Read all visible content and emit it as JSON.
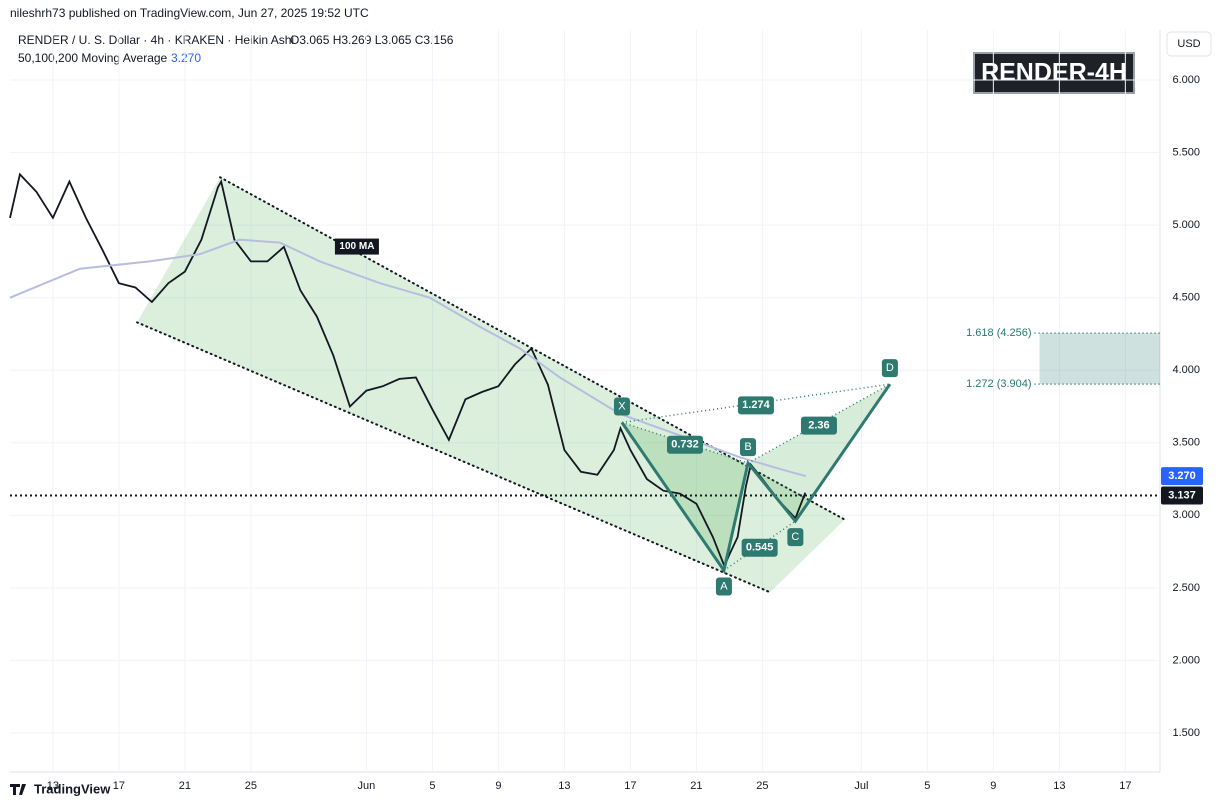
{
  "header": {
    "byline": "nileshrh73 published on TradingView.com, Jun 27, 2025 19:52 UTC",
    "symbol": "RENDER / U. S. Dollar · 4h · KRAKEN · Heikin Ashi",
    "ohlc": "O3.065 H3.269 L3.065 C3.156",
    "indicator": "50,100,200 Moving Average",
    "badge": "RENDER-4H",
    "currency": "USD",
    "footer": "TradingView"
  },
  "chart_data": {
    "type": "line",
    "ylim": [
      1.231,
      6.345
    ],
    "xlim": [
      10.4,
      80.1
    ],
    "grid": true,
    "yticks": [
      {
        "value": 6,
        "label": "6.000"
      },
      {
        "value": 5.5,
        "label": "5.500"
      },
      {
        "value": 5,
        "label": "5.000"
      },
      {
        "value": 4.5,
        "label": "4.500"
      },
      {
        "value": 4,
        "label": "4.000"
      },
      {
        "value": 3.5,
        "label": "3.500"
      },
      {
        "value": 3,
        "label": "3.000"
      },
      {
        "value": 2.5,
        "label": "2.500"
      },
      {
        "value": 2,
        "label": "2.000"
      },
      {
        "value": 1.5,
        "label": "1.500"
      }
    ],
    "xticks": [
      {
        "value": 13,
        "label": "13"
      },
      {
        "value": 17,
        "label": "17"
      },
      {
        "value": 21,
        "label": "21"
      },
      {
        "value": 25,
        "label": "25"
      },
      {
        "value": 32,
        "label": "Jun"
      },
      {
        "value": 36,
        "label": "5"
      },
      {
        "value": 40,
        "label": "9"
      },
      {
        "value": 44,
        "label": "13"
      },
      {
        "value": 48,
        "label": "17"
      },
      {
        "value": 52,
        "label": "21"
      },
      {
        "value": 56,
        "label": "25"
      },
      {
        "value": 62,
        "label": "Jul"
      },
      {
        "value": 66,
        "label": "5"
      },
      {
        "value": 70,
        "label": "9"
      },
      {
        "value": 74,
        "label": "13"
      },
      {
        "value": 78,
        "label": "17"
      }
    ],
    "series": [
      {
        "name": "RENDER",
        "color": "#131722",
        "x": [
          10.4,
          11,
          12,
          13,
          14,
          15,
          16,
          17,
          18,
          19,
          20,
          21,
          22,
          23,
          23.2,
          24,
          25,
          26,
          27,
          28,
          29,
          30,
          31,
          32,
          33,
          34,
          35,
          36,
          37,
          38,
          39,
          40,
          41,
          42,
          43,
          44,
          45,
          46,
          47,
          47.4,
          48,
          49,
          50,
          51,
          52,
          53,
          53.7,
          54,
          54.5,
          55,
          55.3,
          56,
          57,
          58,
          58.6
        ],
        "values": [
          5.05,
          5.35,
          5.23,
          5.05,
          5.3,
          5.05,
          4.83,
          4.6,
          4.57,
          4.47,
          4.6,
          4.68,
          4.9,
          5.26,
          5.3,
          4.9,
          4.75,
          4.75,
          4.85,
          4.55,
          4.37,
          4.1,
          3.75,
          3.86,
          3.89,
          3.94,
          3.95,
          3.73,
          3.52,
          3.8,
          3.85,
          3.89,
          4.04,
          4.15,
          3.9,
          3.45,
          3.3,
          3.28,
          3.45,
          3.6,
          3.45,
          3.25,
          3.17,
          3.15,
          3.08,
          2.85,
          2.65,
          2.73,
          2.85,
          3.2,
          3.35,
          3.25,
          3.1,
          2.98,
          3.156
        ]
      },
      {
        "name": "100 MA",
        "color": "#b8bde0",
        "x": [
          10.4,
          14.64,
          18.88,
          21.9,
          24.33,
          26.76,
          29.18,
          32.82,
          35.85,
          38.88,
          41.3,
          43.73,
          47.36,
          51.0,
          54.64,
          57.06,
          58.64
        ],
        "values": [
          4.5,
          4.7,
          4.75,
          4.8,
          4.9,
          4.88,
          4.75,
          4.6,
          4.5,
          4.3,
          4.15,
          3.95,
          3.7,
          3.55,
          3.4,
          3.32,
          3.27
        ]
      }
    ],
    "ma_value": {
      "value": 3.27,
      "label": "3.270"
    },
    "last_price": 3.137,
    "channel": {
      "upper": {
        "x": [
          23.13,
          61.0
        ],
        "y": [
          5.33,
          2.97
        ]
      },
      "lower": {
        "x": [
          18.1,
          56.46
        ],
        "y": [
          4.33,
          2.47
        ]
      }
    },
    "pattern": {
      "points": [
        {
          "label": "X",
          "x": 47.49,
          "y": 3.64
        },
        {
          "label": "A",
          "x": 53.67,
          "y": 2.62
        },
        {
          "label": "B",
          "x": 55.13,
          "y": 3.36
        },
        {
          "label": "C",
          "x": 58.0,
          "y": 2.96
        },
        {
          "label": "D",
          "x": 63.73,
          "y": 3.904
        }
      ],
      "ratios": [
        {
          "label": "0.732",
          "between": [
            0,
            2
          ]
        },
        {
          "label": "0.545",
          "between": [
            1,
            3
          ]
        },
        {
          "label": "1.274",
          "between": [
            0,
            4
          ]
        },
        {
          "label": "2.36",
          "between": [
            2,
            4
          ]
        }
      ]
    },
    "fib_zone": {
      "start": 72.8,
      "levels": [
        {
          "label": "1.618 (4.256)",
          "value": 4.256
        },
        {
          "label": "1.272 (3.904)",
          "value": 3.904
        }
      ]
    }
  }
}
